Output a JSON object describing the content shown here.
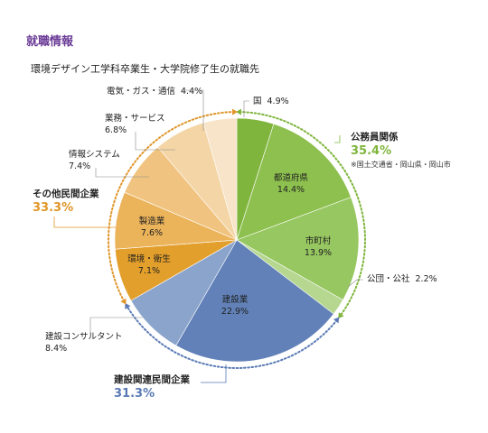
{
  "page": {
    "heading": "就職情報",
    "heading_color": "#6a3a96"
  },
  "chart_data": {
    "type": "pie",
    "title": "環境デザイン工学科卒業生・大学院修了生の就職先",
    "start": "top",
    "direction": "clockwise",
    "slices": [
      {
        "label": "国",
        "value": 4.9,
        "display": "4.9%",
        "group": "gov",
        "color": "#7fb53c"
      },
      {
        "label": "都道府県",
        "value": 14.4,
        "display": "14.4%",
        "group": "gov",
        "color": "#8dc04e"
      },
      {
        "label": "市町村",
        "value": 13.9,
        "display": "13.9%",
        "group": "gov",
        "color": "#97c760"
      },
      {
        "label": "公団・公社",
        "value": 2.2,
        "display": "2.2%",
        "group": "gov",
        "color": "#b5d78f"
      },
      {
        "label": "建設業",
        "value": 22.9,
        "display": "22.9%",
        "group": "construction",
        "color": "#6181b8"
      },
      {
        "label": "建設コンサルタント",
        "value": 8.4,
        "display": "8.4%",
        "group": "construction",
        "color": "#8ba4cc"
      },
      {
        "label": "環境・衛生",
        "value": 7.1,
        "display": "7.1%",
        "group": "other",
        "color": "#e39f2b"
      },
      {
        "label": "製造業",
        "value": 7.6,
        "display": "7.6%",
        "group": "other",
        "color": "#ebb35a"
      },
      {
        "label": "情報システム",
        "value": 7.4,
        "display": "7.4%",
        "group": "other",
        "color": "#f0c480"
      },
      {
        "label": "業務・サービス",
        "value": 6.8,
        "display": "6.8%",
        "group": "other",
        "color": "#f4d5a6"
      },
      {
        "label": "電気・ガス・通信",
        "value": 4.4,
        "display": "4.4%",
        "group": "other",
        "color": "#f8e4c8"
      }
    ],
    "groups": [
      {
        "id": "gov",
        "name": "公務員関係",
        "total": "35.4%",
        "note": "※国土交通省・岡山県・岡山市",
        "color": "#7fb53c"
      },
      {
        "id": "construction",
        "name": "建設関連民間企業",
        "total": "31.3%",
        "color": "#5a7ab5"
      },
      {
        "id": "other",
        "name": "その他民間企業",
        "total": "33.3%",
        "color": "#e0962a"
      }
    ]
  }
}
